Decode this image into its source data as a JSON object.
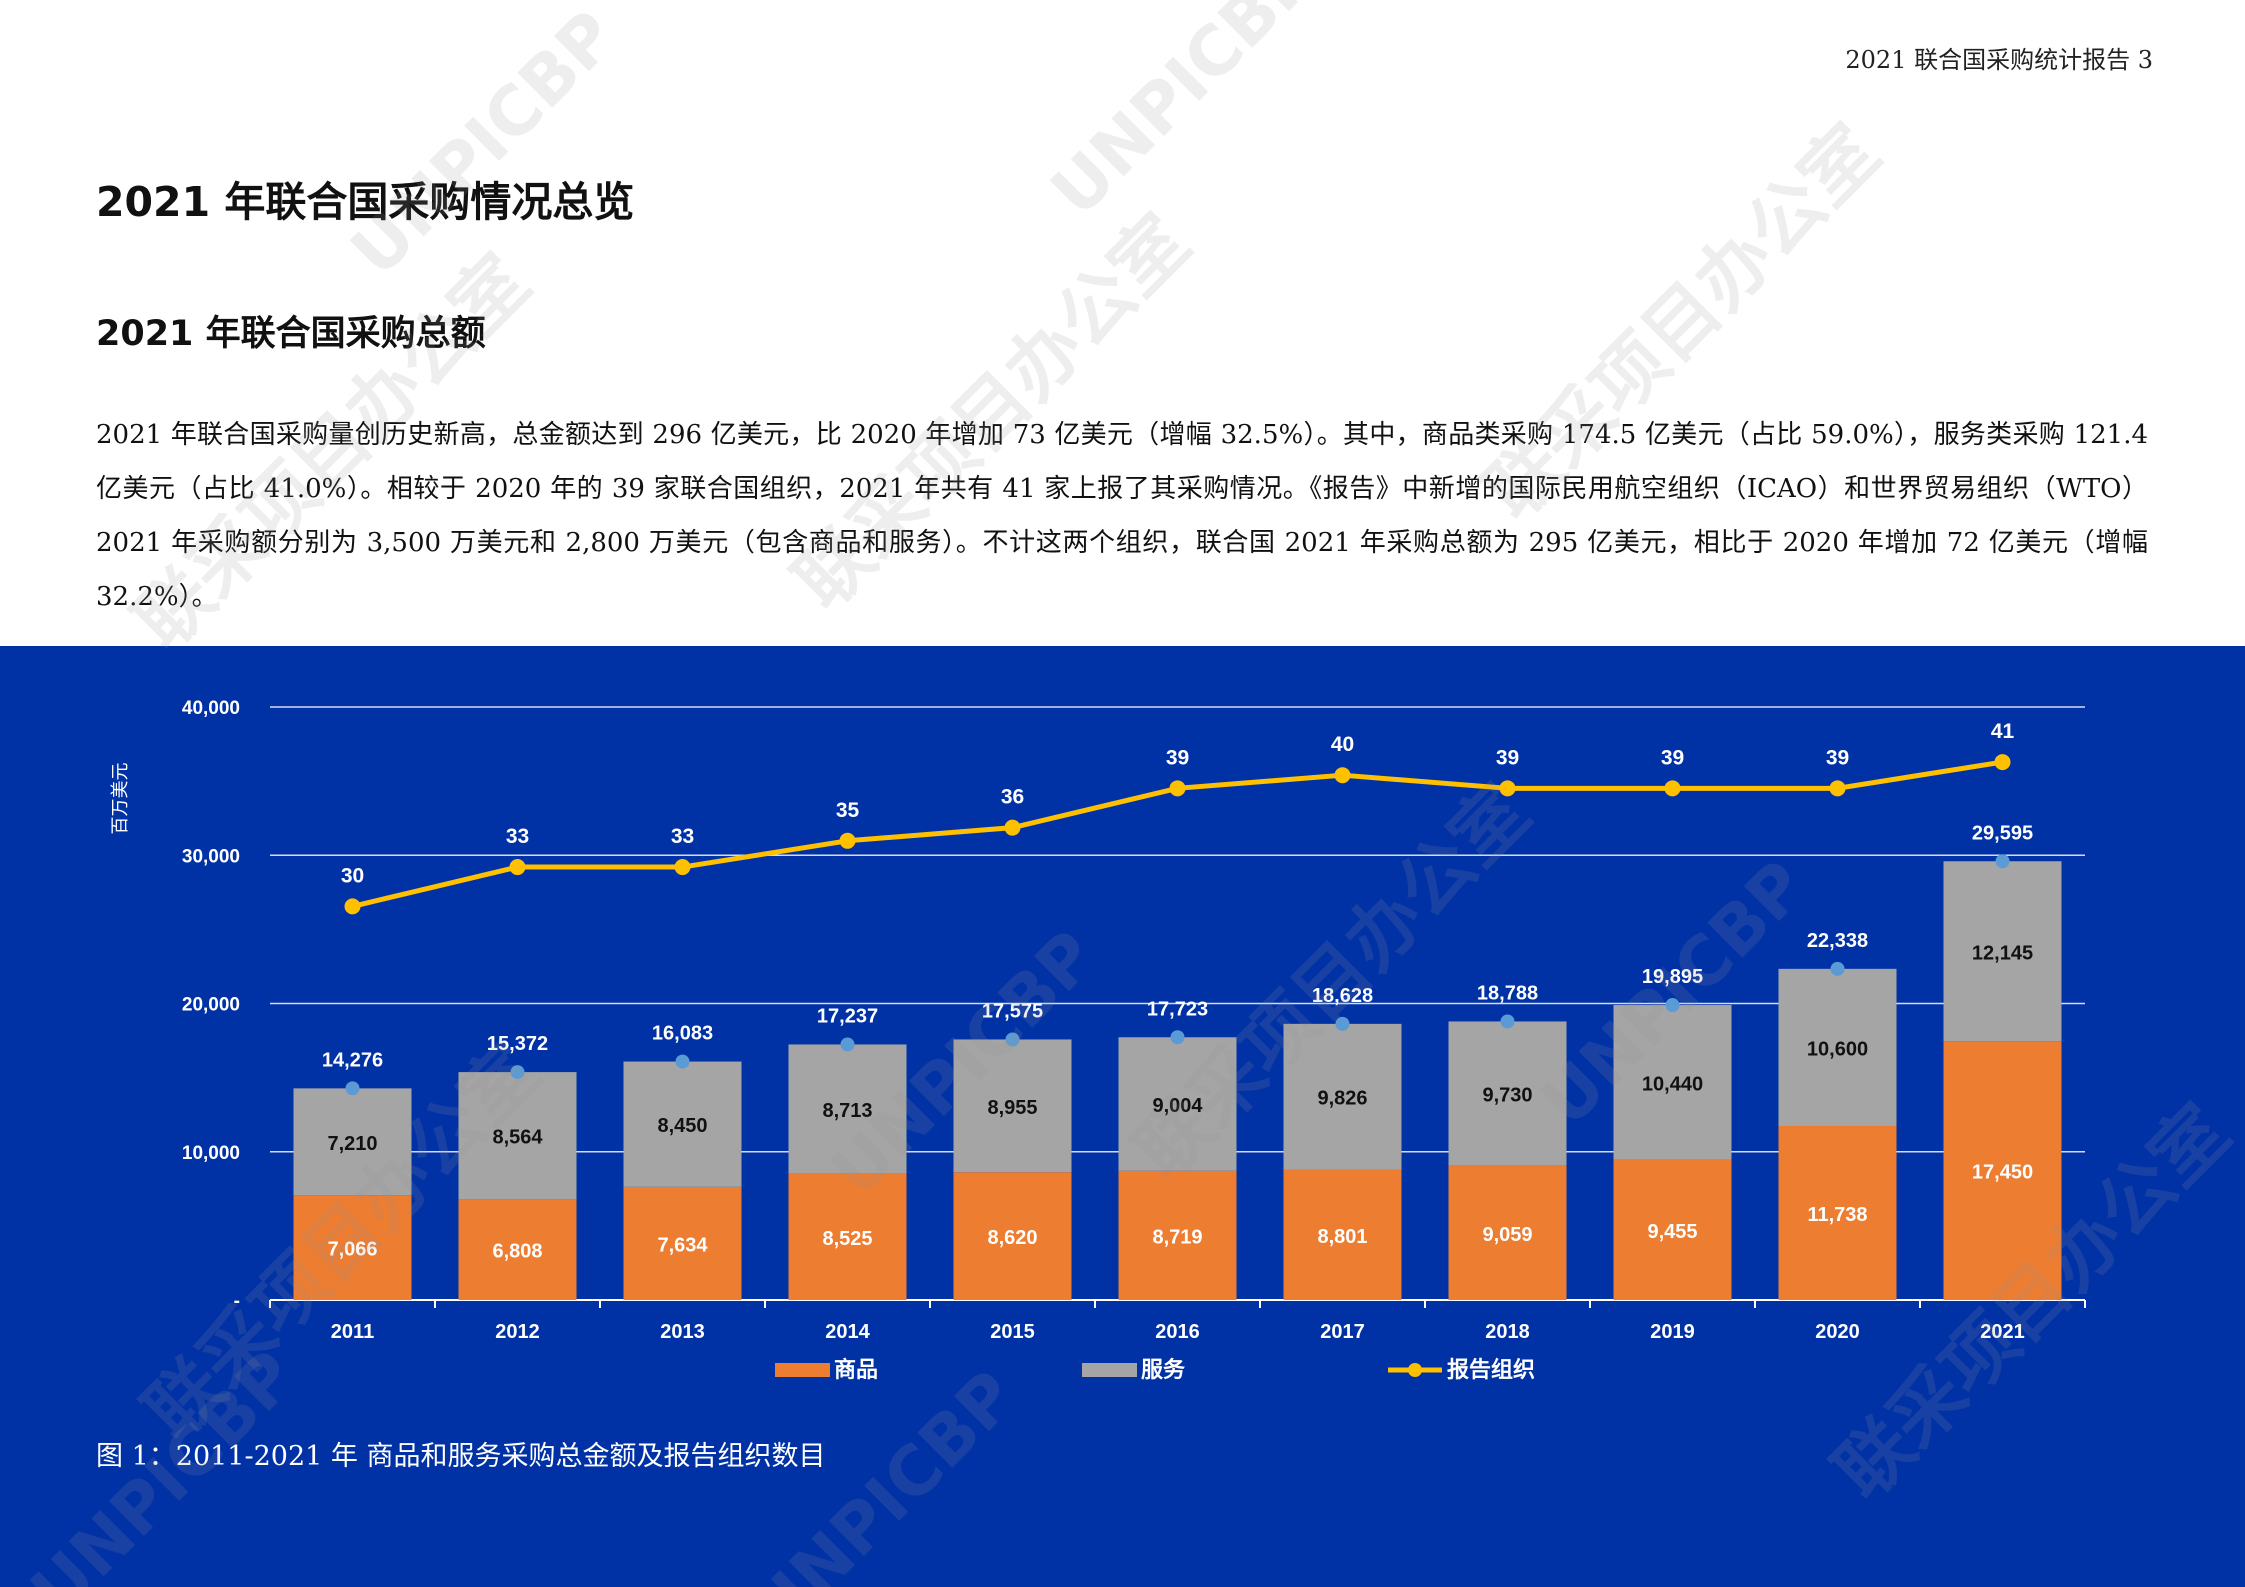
{
  "header": {
    "running_title": "2021 联合国采购统计报告 3"
  },
  "section_title": "2021 年联合国采购情况总览",
  "subsection_title": "2021 年联合国采购总额",
  "paragraph": "2021 年联合国采购量创历史新高，总金额达到 296 亿美元，比 2020 年增加 73 亿美元（增幅 32.5%）。其中，商品类采购 174.5 亿美元（占比 59.0%），服务类采购 121.4 亿美元（占比 41.0%）。相较于 2020 年的 39 家联合国组织，2021 年共有 41 家上报了其采购情况。《报告》中新增的国际民用航空组织（ICAO）和世界贸易组织（WTO）2021 年采购额分别为 3,500 万美元和 2,800 万美元（包含商品和服务）。不计这两个组织，联合国 2021 年采购总额为 295 亿美元，相比于 2020 年增加 72 亿美元（增幅 32.2%）。",
  "caption": "图 1：2011-2021 年 商品和服务采购总金额及报告组织数目",
  "watermark_texts": [
    "联采项目办公室",
    "UNPICBP"
  ],
  "colors": {
    "panel": "#0032a6",
    "goods": "#ed7d31",
    "services": "#a5a5a5",
    "line": "#ffc000",
    "total_marker": "#5b9bd5"
  },
  "chart_data": {
    "type": "bar",
    "stacked": true,
    "categories": [
      "2011",
      "2012",
      "2013",
      "2014",
      "2015",
      "2016",
      "2017",
      "2018",
      "2019",
      "2020",
      "2021"
    ],
    "ylabel": "百万美元",
    "ylim": [
      0,
      40000
    ],
    "yticks": [
      {
        "value": 0,
        "label": "-"
      },
      {
        "value": 10000,
        "label": "10,000"
      },
      {
        "value": 20000,
        "label": "20,000"
      },
      {
        "value": 30000,
        "label": "30,000"
      },
      {
        "value": 40000,
        "label": "40,000"
      }
    ],
    "grid": true,
    "legend_position": "bottom",
    "series": [
      {
        "name": "商品",
        "kind": "bar",
        "values": [
          7066,
          6808,
          7634,
          8525,
          8620,
          8719,
          8801,
          9059,
          9455,
          11738,
          17450
        ],
        "labels": [
          "7,066",
          "6,808",
          "7,634",
          "8,525",
          "8,620",
          "8,719",
          "8,801",
          "9,059",
          "9,455",
          "11,738",
          "17,450"
        ]
      },
      {
        "name": "服务",
        "kind": "bar",
        "values": [
          7210,
          8564,
          8450,
          8713,
          8955,
          9004,
          9826,
          9730,
          10440,
          10600,
          12145
        ],
        "labels": [
          "7,210",
          "8,564",
          "8,450",
          "8,713",
          "8,955",
          "9,004",
          "9,826",
          "9,730",
          "10,440",
          "10,600",
          "12,145"
        ]
      },
      {
        "name": "报告组织",
        "kind": "line",
        "values": [
          30,
          33,
          33,
          35,
          36,
          39,
          40,
          39,
          39,
          39,
          41
        ],
        "labels": [
          "30",
          "33",
          "33",
          "35",
          "36",
          "39",
          "40",
          "39",
          "39",
          "39",
          "41"
        ]
      }
    ],
    "totals": [
      14276,
      15372,
      16083,
      17237,
      17575,
      17723,
      18628,
      18788,
      19895,
      22338,
      29595
    ],
    "total_labels": [
      "14,276",
      "15,372",
      "16,083",
      "17,237",
      "17,575",
      "17,723",
      "18,628",
      "18,788",
      "19,895",
      "22,338",
      "29,595"
    ]
  }
}
